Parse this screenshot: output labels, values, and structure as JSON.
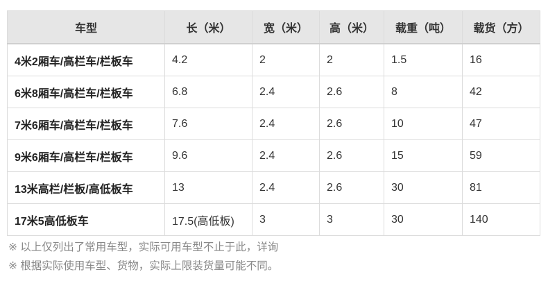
{
  "headers": [
    "车型",
    "长（米）",
    "宽（米）",
    "高（米）",
    "载重（吨）",
    "载货（方）"
  ],
  "rows": [
    [
      "4米2厢车/高栏车/栏板车",
      "4.2",
      "2",
      "2",
      "1.5",
      "16"
    ],
    [
      "6米8厢车/高栏车/栏板车",
      "6.8",
      "2.4",
      "2.6",
      "8",
      "42"
    ],
    [
      "7米6厢车/高栏车/栏板车",
      "7.6",
      "2.4",
      "2.6",
      "10",
      "47"
    ],
    [
      "9米6厢车/高栏车/栏板车",
      "9.6",
      "2.4",
      "2.6",
      "15",
      "59"
    ],
    [
      "13米高栏/栏板/高低板车",
      "13",
      "2.4",
      "2.6",
      "30",
      "81"
    ],
    [
      "17米5高低板车",
      "17.5(高低板)",
      "3",
      "3",
      "30",
      "140"
    ]
  ],
  "notes": [
    "※ 以上仅列出了常用车型，实际可用车型不止于此，详询",
    "※ 根据实际使用车型、货物，实际上限装货量可能不同。"
  ]
}
